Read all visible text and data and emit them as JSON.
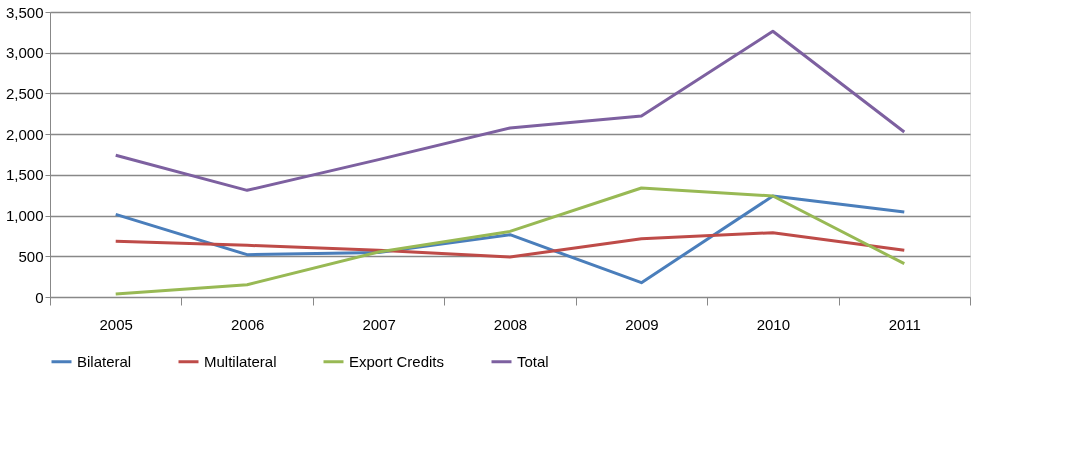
{
  "chart_data": {
    "type": "line",
    "categories": [
      "2005",
      "2006",
      "2007",
      "2008",
      "2009",
      "2010",
      "2011"
    ],
    "series": [
      {
        "name": "Bilateral",
        "color": "#4a7ebb",
        "values": [
          1015,
          520,
          545,
          765,
          176,
          1240,
          1044
        ]
      },
      {
        "name": "Multilateral",
        "color": "#be4b48",
        "values": [
          684,
          635,
          573,
          491,
          716,
          790,
          573
        ]
      },
      {
        "name": "Export Credits",
        "color": "#98b954",
        "values": [
          37,
          150,
          553,
          806,
          1339,
          1240,
          409
        ]
      },
      {
        "name": "Total",
        "color": "#7d60a0",
        "values": [
          1740,
          1310,
          1687,
          2075,
          2223,
          3263,
          2026
        ]
      }
    ],
    "ylim": [
      0,
      3500
    ],
    "yticks": [
      0,
      {
        "value": 500,
        "label": "500"
      },
      {
        "value": 1000,
        "label": "1,000"
      },
      {
        "value": 1500,
        "label": "1,500"
      },
      {
        "value": 2000,
        "label": "2,000"
      },
      {
        "value": 2500,
        "label": "2,500"
      },
      {
        "value": 3000,
        "label": "3,000"
      },
      {
        "value": 3500,
        "label": "3,500"
      }
    ],
    "grid": "y",
    "legend": "bottom",
    "marker": "none",
    "line_style": "solid"
  }
}
